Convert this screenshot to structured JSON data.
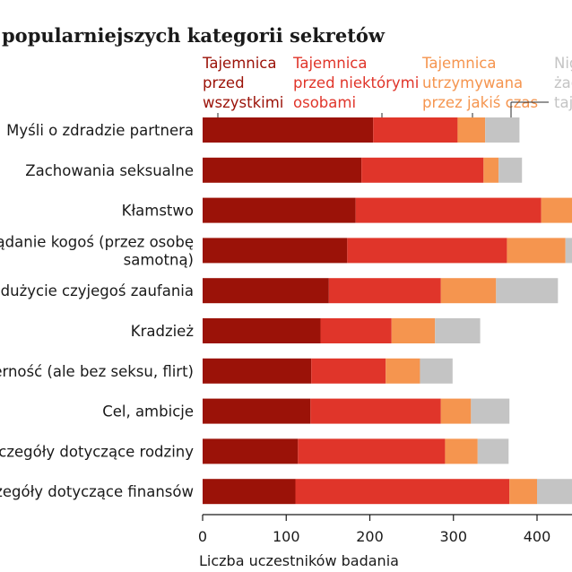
{
  "chart_data": {
    "type": "bar",
    "orientation": "horizontal",
    "stacked": true,
    "title": "popularniejszych kategorii sekretów",
    "xlabel": "Liczba uczestników badania",
    "ylabel": "",
    "xlim": [
      0,
      440
    ],
    "xticks": [
      "0",
      "100",
      "200",
      "300",
      "400"
    ],
    "tick_values": [
      0,
      100,
      200,
      300,
      400
    ],
    "categories": [
      [
        "Myśli o zdradzie partnera"
      ],
      [
        "Zachowania seksualne"
      ],
      [
        "Kłamstwo"
      ],
      [
        "Pożądanie kogoś (przez osobę",
        "samotną)"
      ],
      [
        "Nadużycie czyjegoś zaufania"
      ],
      [
        "Kradzież"
      ],
      [
        "wierność (ale bez seksu, flirt)"
      ],
      [
        "Cel, ambicje"
      ],
      [
        "Szczegóły dotyczące rodziny"
      ],
      [
        "czegóły dotyczące finansów"
      ]
    ],
    "series": [
      {
        "name": [
          "Tajemnica",
          "przed",
          "wszystkimi"
        ],
        "color": "#9b1208",
        "values": [
          204,
          190,
          183,
          173,
          151,
          141,
          130,
          129,
          114,
          111
        ]
      },
      {
        "name": [
          "Tajemnica",
          "przed niektórymi",
          "osobami"
        ],
        "color": "#e0352a",
        "values": [
          101,
          146,
          222,
          191,
          134,
          85,
          89,
          156,
          176,
          256
        ]
      },
      {
        "name": [
          "Tajemnica",
          "utrzymywana",
          "przez jakiś czas"
        ],
        "color": "#f5954f",
        "values": [
          33,
          18,
          40,
          70,
          66,
          52,
          41,
          36,
          39,
          33
        ]
      },
      {
        "name": [
          "Nig",
          "żad",
          "taj"
        ],
        "color": "#c4c4c4",
        "values": [
          41,
          28,
          10,
          10,
          74,
          54,
          39,
          46,
          37,
          60
        ]
      }
    ],
    "legend_position": "top",
    "grid": false
  }
}
